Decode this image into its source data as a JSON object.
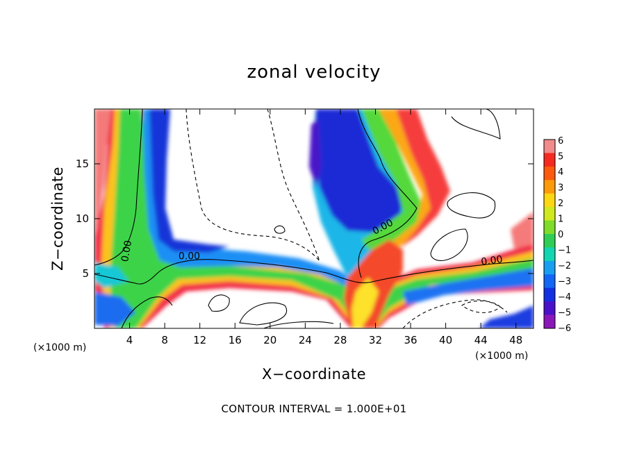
{
  "chart_data": {
    "type": "heatmap",
    "title": "zonal velocity",
    "xlabel": "X−coordinate",
    "ylabel": "Z−coordinate",
    "x_unit_label": "(×1000 m)",
    "contour_interval_text": "CONTOUR INTERVAL = 1.000E+01",
    "xlim": [
      0,
      50
    ],
    "ylim": [
      0,
      20
    ],
    "x_ticks": [
      4,
      8,
      12,
      16,
      20,
      24,
      28,
      32,
      36,
      40,
      44,
      48
    ],
    "y_ticks": [
      5,
      10,
      15
    ],
    "colorbar": {
      "ticks": [
        "6",
        "5",
        "4",
        "3",
        "2",
        "1",
        "0",
        "−1",
        "−2",
        "−3",
        "−4",
        "−5",
        "−6"
      ],
      "colors": [
        "#f28b8b",
        "#f52a20",
        "#fb5a0f",
        "#fd9a0c",
        "#fcd714",
        "#cfe81f",
        "#7fdc2a",
        "#2fcd55",
        "#13d6b0",
        "#1a9ff0",
        "#1466f5",
        "#1230e0",
        "#4a12c8",
        "#8a18b8"
      ]
    },
    "contour_labels": [
      {
        "text": "0.00",
        "x": 4.0,
        "y": 7.0
      },
      {
        "text": "0.00",
        "x": 10.8,
        "y": 6.3
      },
      {
        "text": "0.00",
        "x": 33.0,
        "y": 9.0
      },
      {
        "text": "0.00",
        "x": 45.3,
        "y": 5.9
      }
    ]
  }
}
